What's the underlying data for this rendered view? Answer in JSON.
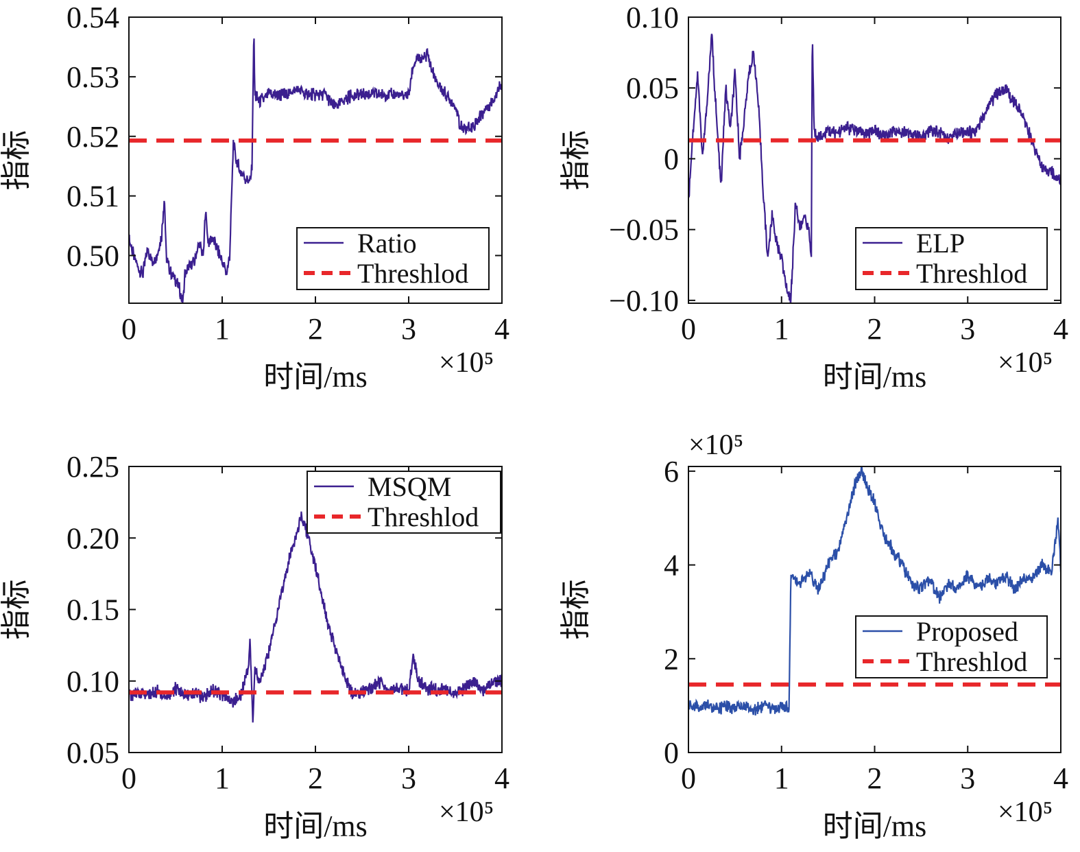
{
  "colors": {
    "series": "#3b1f8f",
    "series_proposed": "#2b4fa8",
    "threshold": "#e8272a",
    "axis": "#111111"
  },
  "chart_data": [
    {
      "type": "line",
      "xlabel": "时间/ms",
      "ylabel": "指标",
      "x_scale_label": "×10⁵",
      "xlim": [
        0,
        4
      ],
      "ylim": [
        0.492,
        0.54
      ],
      "xticks": [
        "0",
        "1",
        "2",
        "3",
        "4"
      ],
      "yticks": [
        "0.50",
        "0.51",
        "0.52",
        "0.53",
        "0.54"
      ],
      "legend_position": "bottom-right",
      "series": [
        {
          "name": "Ratio",
          "style": "solid",
          "x": [
            0,
            0.05,
            0.1,
            0.15,
            0.2,
            0.25,
            0.3,
            0.35,
            0.38,
            0.4,
            0.45,
            0.5,
            0.55,
            0.58,
            0.6,
            0.65,
            0.7,
            0.75,
            0.8,
            0.82,
            0.85,
            0.9,
            0.95,
            1.0,
            1.05,
            1.08,
            1.12,
            1.15,
            1.2,
            1.25,
            1.3,
            1.32,
            1.34,
            1.35,
            1.4,
            1.5,
            1.6,
            1.7,
            1.8,
            1.9,
            2.0,
            2.1,
            2.2,
            2.3,
            2.4,
            2.5,
            2.6,
            2.7,
            2.8,
            2.9,
            3.0,
            3.05,
            3.1,
            3.15,
            3.2,
            3.25,
            3.3,
            3.4,
            3.5,
            3.55,
            3.6,
            3.7,
            3.8,
            3.9,
            4.0
          ],
          "y": [
            0.503,
            0.5,
            0.498,
            0.497,
            0.501,
            0.499,
            0.5,
            0.503,
            0.51,
            0.5,
            0.497,
            0.496,
            0.494,
            0.492,
            0.497,
            0.498,
            0.499,
            0.502,
            0.5,
            0.508,
            0.502,
            0.503,
            0.501,
            0.499,
            0.497,
            0.5,
            0.519,
            0.516,
            0.514,
            0.513,
            0.512,
            0.515,
            0.538,
            0.527,
            0.526,
            0.527,
            0.527,
            0.527,
            0.528,
            0.527,
            0.527,
            0.527,
            0.525,
            0.526,
            0.527,
            0.527,
            0.527,
            0.527,
            0.527,
            0.527,
            0.527,
            0.532,
            0.533,
            0.533,
            0.534,
            0.531,
            0.529,
            0.527,
            0.525,
            0.522,
            0.521,
            0.522,
            0.524,
            0.526,
            0.529
          ]
        },
        {
          "name": "Threshlod",
          "style": "dashed",
          "x": [
            0,
            4
          ],
          "y": [
            0.5193,
            0.5193
          ]
        }
      ]
    },
    {
      "type": "line",
      "xlabel": "时间/ms",
      "ylabel": "指标",
      "x_scale_label": "×10⁵",
      "xlim": [
        0,
        4
      ],
      "ylim": [
        -0.102,
        0.1
      ],
      "xticks": [
        "0",
        "1",
        "2",
        "3",
        "4"
      ],
      "yticks": [
        "−0.10",
        "−0.05",
        "0",
        "0.05",
        "0.10"
      ],
      "legend_position": "bottom-right",
      "series": [
        {
          "name": "ELP",
          "style": "solid",
          "x": [
            0,
            0.05,
            0.1,
            0.15,
            0.2,
            0.25,
            0.3,
            0.35,
            0.4,
            0.45,
            0.5,
            0.55,
            0.6,
            0.65,
            0.7,
            0.75,
            0.8,
            0.85,
            0.9,
            0.95,
            1.0,
            1.05,
            1.1,
            1.15,
            1.2,
            1.25,
            1.3,
            1.32,
            1.33,
            1.35,
            1.4,
            1.5,
            1.6,
            1.7,
            1.8,
            1.9,
            2.0,
            2.1,
            2.2,
            2.3,
            2.4,
            2.5,
            2.6,
            2.7,
            2.8,
            2.9,
            3.0,
            3.1,
            3.2,
            3.3,
            3.4,
            3.5,
            3.6,
            3.7,
            3.8,
            3.9,
            4.0
          ],
          "y": [
            -0.03,
            0.02,
            0.06,
            0.0,
            0.04,
            0.088,
            0.03,
            -0.02,
            0.05,
            0.02,
            0.06,
            0.0,
            0.03,
            0.06,
            0.075,
            0.04,
            -0.02,
            -0.07,
            -0.04,
            -0.06,
            -0.07,
            -0.09,
            -0.1,
            -0.03,
            -0.05,
            -0.04,
            -0.055,
            -0.07,
            0.092,
            0.02,
            0.015,
            0.02,
            0.018,
            0.022,
            0.02,
            0.018,
            0.02,
            0.015,
            0.02,
            0.02,
            0.018,
            0.015,
            0.02,
            0.018,
            0.015,
            0.02,
            0.018,
            0.02,
            0.035,
            0.045,
            0.05,
            0.04,
            0.03,
            0.01,
            -0.005,
            -0.01,
            -0.015
          ]
        },
        {
          "name": "Threshlod",
          "style": "dashed",
          "x": [
            0,
            4
          ],
          "y": [
            0.013,
            0.013
          ]
        }
      ]
    },
    {
      "type": "line",
      "xlabel": "时间/ms",
      "ylabel": "指标",
      "x_scale_label": "×10⁵",
      "xlim": [
        0,
        4
      ],
      "ylim": [
        0.05,
        0.25
      ],
      "xticks": [
        "0",
        "1",
        "2",
        "3",
        "4"
      ],
      "yticks": [
        "0.05",
        "0.10",
        "0.15",
        "0.20",
        "0.25"
      ],
      "legend_position": "top-right",
      "series": [
        {
          "name": "MSQM",
          "style": "solid",
          "x": [
            0,
            0.1,
            0.2,
            0.3,
            0.4,
            0.5,
            0.6,
            0.7,
            0.8,
            0.9,
            1.0,
            1.1,
            1.2,
            1.28,
            1.3,
            1.33,
            1.35,
            1.4,
            1.5,
            1.6,
            1.7,
            1.8,
            1.85,
            1.9,
            2.0,
            2.1,
            2.2,
            2.3,
            2.4,
            2.5,
            2.6,
            2.7,
            2.8,
            2.9,
            3.0,
            3.05,
            3.1,
            3.2,
            3.3,
            3.4,
            3.5,
            3.6,
            3.7,
            3.8,
            3.9,
            4.0
          ],
          "y": [
            0.09,
            0.092,
            0.09,
            0.093,
            0.088,
            0.095,
            0.09,
            0.092,
            0.088,
            0.094,
            0.09,
            0.085,
            0.09,
            0.11,
            0.128,
            0.068,
            0.11,
            0.1,
            0.12,
            0.15,
            0.18,
            0.205,
            0.215,
            0.205,
            0.18,
            0.15,
            0.125,
            0.105,
            0.09,
            0.093,
            0.095,
            0.1,
            0.093,
            0.095,
            0.093,
            0.12,
            0.1,
            0.095,
            0.093,
            0.095,
            0.09,
            0.095,
            0.1,
            0.093,
            0.1,
            0.1
          ]
        },
        {
          "name": "Threshlod",
          "style": "dashed",
          "x": [
            0,
            4
          ],
          "y": [
            0.092,
            0.092
          ]
        }
      ]
    },
    {
      "type": "line",
      "xlabel": "时间/ms",
      "ylabel": "指标",
      "x_scale_label": "×10⁵",
      "y_scale_label": "×10⁵",
      "xlim": [
        0,
        4
      ],
      "ylim": [
        0,
        6.1
      ],
      "xticks": [
        "0",
        "1",
        "2",
        "3",
        "4"
      ],
      "yticks": [
        "0",
        "2",
        "4",
        "6"
      ],
      "legend_position": "bottom-right",
      "series": [
        {
          "name": "Proposed",
          "style": "solid",
          "x": [
            0,
            0.1,
            0.2,
            0.3,
            0.4,
            0.5,
            0.6,
            0.7,
            0.8,
            0.9,
            1.0,
            1.05,
            1.08,
            1.1,
            1.15,
            1.2,
            1.3,
            1.4,
            1.5,
            1.6,
            1.7,
            1.8,
            1.85,
            1.9,
            2.0,
            2.1,
            2.2,
            2.3,
            2.4,
            2.5,
            2.6,
            2.7,
            2.8,
            2.9,
            3.0,
            3.1,
            3.2,
            3.3,
            3.4,
            3.5,
            3.6,
            3.7,
            3.8,
            3.9,
            3.97,
            4.0
          ],
          "y": [
            1.0,
            0.95,
            1.0,
            0.9,
            1.0,
            0.95,
            1.0,
            0.9,
            1.0,
            0.95,
            1.0,
            0.95,
            0.9,
            3.8,
            3.7,
            3.6,
            3.8,
            3.5,
            4.0,
            4.3,
            5.0,
            5.8,
            6.0,
            5.8,
            5.3,
            4.6,
            4.3,
            4.0,
            3.6,
            3.5,
            3.7,
            3.3,
            3.6,
            3.5,
            3.8,
            3.5,
            3.7,
            3.6,
            3.8,
            3.5,
            3.7,
            3.7,
            4.0,
            3.8,
            5.0,
            3.9
          ]
        },
        {
          "name": "Threshlod",
          "style": "dashed",
          "x": [
            0,
            4
          ],
          "y": [
            1.45,
            1.45
          ]
        }
      ]
    }
  ]
}
